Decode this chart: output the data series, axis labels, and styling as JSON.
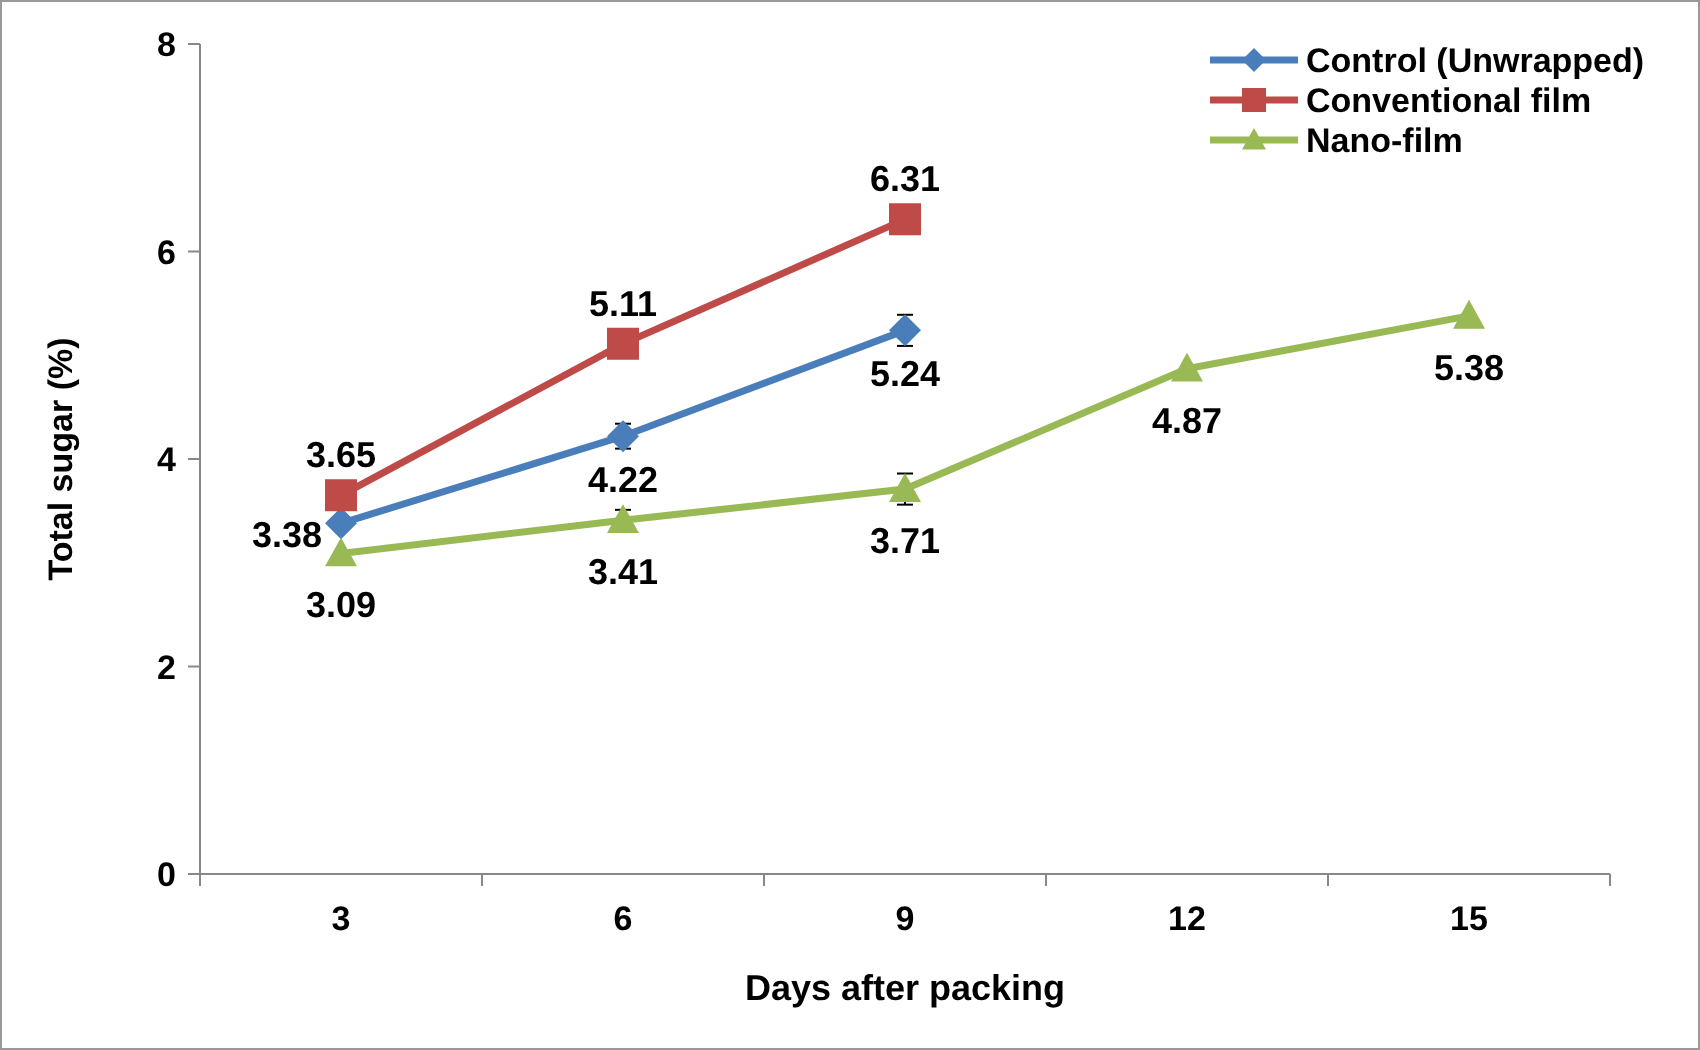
{
  "chart_data": {
    "type": "line",
    "xlabel": "Days after packing",
    "ylabel": "Total sugar (%)",
    "categories": [
      "3",
      "6",
      "9",
      "12",
      "15"
    ],
    "ylim": [
      0,
      8
    ],
    "yticks": [
      0,
      2,
      4,
      6,
      8
    ],
    "grid": false,
    "legend": "top right",
    "data_labels": true,
    "line_style": "solid",
    "series": [
      {
        "name": "Control (Unwrapped)",
        "color": "#4a7ebb",
        "marker": "diamond",
        "values": [
          3.38,
          4.22,
          5.24,
          null,
          null
        ],
        "errors": [
          null,
          0.12,
          0.15,
          null,
          null
        ]
      },
      {
        "name": "Conventional film",
        "color": "#be4b48",
        "marker": "square",
        "values": [
          3.65,
          5.11,
          6.31,
          null,
          null
        ],
        "errors": [
          null,
          null,
          null,
          null,
          null
        ]
      },
      {
        "name": "Nano-film",
        "color": "#98b954",
        "marker": "triangle",
        "values": [
          3.09,
          3.41,
          3.71,
          4.87,
          5.38
        ],
        "errors": [
          null,
          0.1,
          0.15,
          null,
          null
        ]
      }
    ]
  }
}
